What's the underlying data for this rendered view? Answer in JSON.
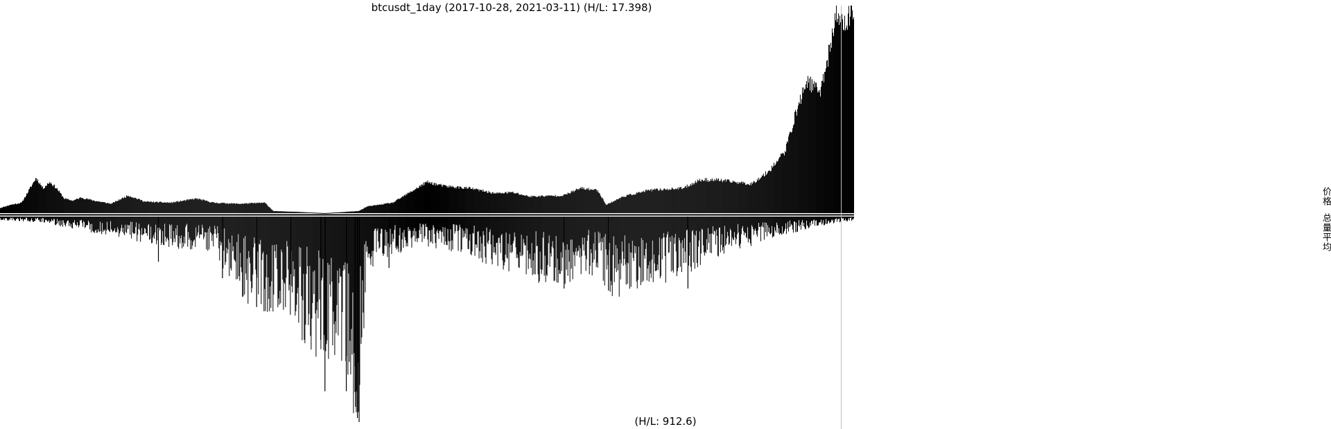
{
  "chart_data": {
    "type": "bar",
    "title": "btcusdt_1day (2017-10-28, 2021-03-11) (H/L: 17.398)",
    "x_range": [
      "2017-10-28",
      "2021-03-11"
    ],
    "series": [
      {
        "name": "价格",
        "panel": "top",
        "color": "#000000",
        "keypoints": [
          [
            0,
            0.025
          ],
          [
            0.012,
            0.04
          ],
          [
            0.025,
            0.05
          ],
          [
            0.035,
            0.12
          ],
          [
            0.042,
            0.17
          ],
          [
            0.05,
            0.12
          ],
          [
            0.058,
            0.15
          ],
          [
            0.066,
            0.12
          ],
          [
            0.075,
            0.07
          ],
          [
            0.085,
            0.06
          ],
          [
            0.095,
            0.075
          ],
          [
            0.11,
            0.06
          ],
          [
            0.13,
            0.045
          ],
          [
            0.15,
            0.085
          ],
          [
            0.17,
            0.055
          ],
          [
            0.2,
            0.05
          ],
          [
            0.23,
            0.07
          ],
          [
            0.25,
            0.05
          ],
          [
            0.28,
            0.045
          ],
          [
            0.31,
            0.05
          ],
          [
            0.32,
            0.01
          ],
          [
            0.35,
            0.006
          ],
          [
            0.38,
            0.0
          ],
          [
            0.42,
            0.01
          ],
          [
            0.43,
            0.032
          ],
          [
            0.46,
            0.05
          ],
          [
            0.48,
            0.1
          ],
          [
            0.5,
            0.15
          ],
          [
            0.52,
            0.13
          ],
          [
            0.55,
            0.12
          ],
          [
            0.58,
            0.095
          ],
          [
            0.6,
            0.1
          ],
          [
            0.62,
            0.08
          ],
          [
            0.66,
            0.085
          ],
          [
            0.68,
            0.12
          ],
          [
            0.7,
            0.11
          ],
          [
            0.71,
            0.04
          ],
          [
            0.73,
            0.08
          ],
          [
            0.76,
            0.11
          ],
          [
            0.8,
            0.12
          ],
          [
            0.82,
            0.16
          ],
          [
            0.84,
            0.16
          ],
          [
            0.88,
            0.14
          ],
          [
            0.9,
            0.2
          ],
          [
            0.92,
            0.3
          ],
          [
            0.93,
            0.45
          ],
          [
            0.945,
            0.64
          ],
          [
            0.96,
            0.58
          ],
          [
            0.97,
            0.75
          ],
          [
            0.98,
            0.96
          ],
          [
            0.99,
            0.9
          ],
          [
            1.0,
            1.0
          ]
        ],
        "noise": 0.12,
        "seed": 11
      },
      {
        "name": "总量平均",
        "panel": "bottom",
        "color": "#000000",
        "keypoints": [
          [
            0,
            0.01
          ],
          [
            0.05,
            0.015
          ],
          [
            0.1,
            0.04
          ],
          [
            0.15,
            0.06
          ],
          [
            0.2,
            0.08
          ],
          [
            0.25,
            0.1
          ],
          [
            0.28,
            0.2
          ],
          [
            0.3,
            0.25
          ],
          [
            0.33,
            0.25
          ],
          [
            0.36,
            0.35
          ],
          [
            0.38,
            0.38
          ],
          [
            0.4,
            0.4
          ],
          [
            0.42,
            0.55
          ],
          [
            0.43,
            0.15
          ],
          [
            0.46,
            0.1
          ],
          [
            0.5,
            0.08
          ],
          [
            0.55,
            0.1
          ],
          [
            0.6,
            0.16
          ],
          [
            0.65,
            0.18
          ],
          [
            0.7,
            0.15
          ],
          [
            0.72,
            0.22
          ],
          [
            0.76,
            0.18
          ],
          [
            0.8,
            0.16
          ],
          [
            0.85,
            0.1
          ],
          [
            0.9,
            0.06
          ],
          [
            0.95,
            0.03
          ],
          [
            1.0,
            0.01
          ]
        ],
        "noise": 0.5,
        "seed": 29,
        "spikes": [
          [
            0.3,
            0.44
          ],
          [
            0.34,
            0.28
          ],
          [
            0.375,
            0.6
          ],
          [
            0.38,
            0.85
          ],
          [
            0.405,
            0.85
          ],
          [
            0.418,
            0.98
          ],
          [
            0.42,
            1.0
          ],
          [
            0.415,
            0.73
          ],
          [
            0.185,
            0.22
          ],
          [
            0.26,
            0.3
          ],
          [
            0.455,
            0.25
          ],
          [
            0.66,
            0.35
          ],
          [
            0.712,
            0.36
          ],
          [
            0.805,
            0.35
          ]
        ]
      }
    ],
    "bar_count": 1231,
    "marker_x_fraction": 0.985,
    "volume_label": "(H/L: 912.6)"
  },
  "legend": {
    "price": "价格",
    "volume": "总量平均"
  }
}
